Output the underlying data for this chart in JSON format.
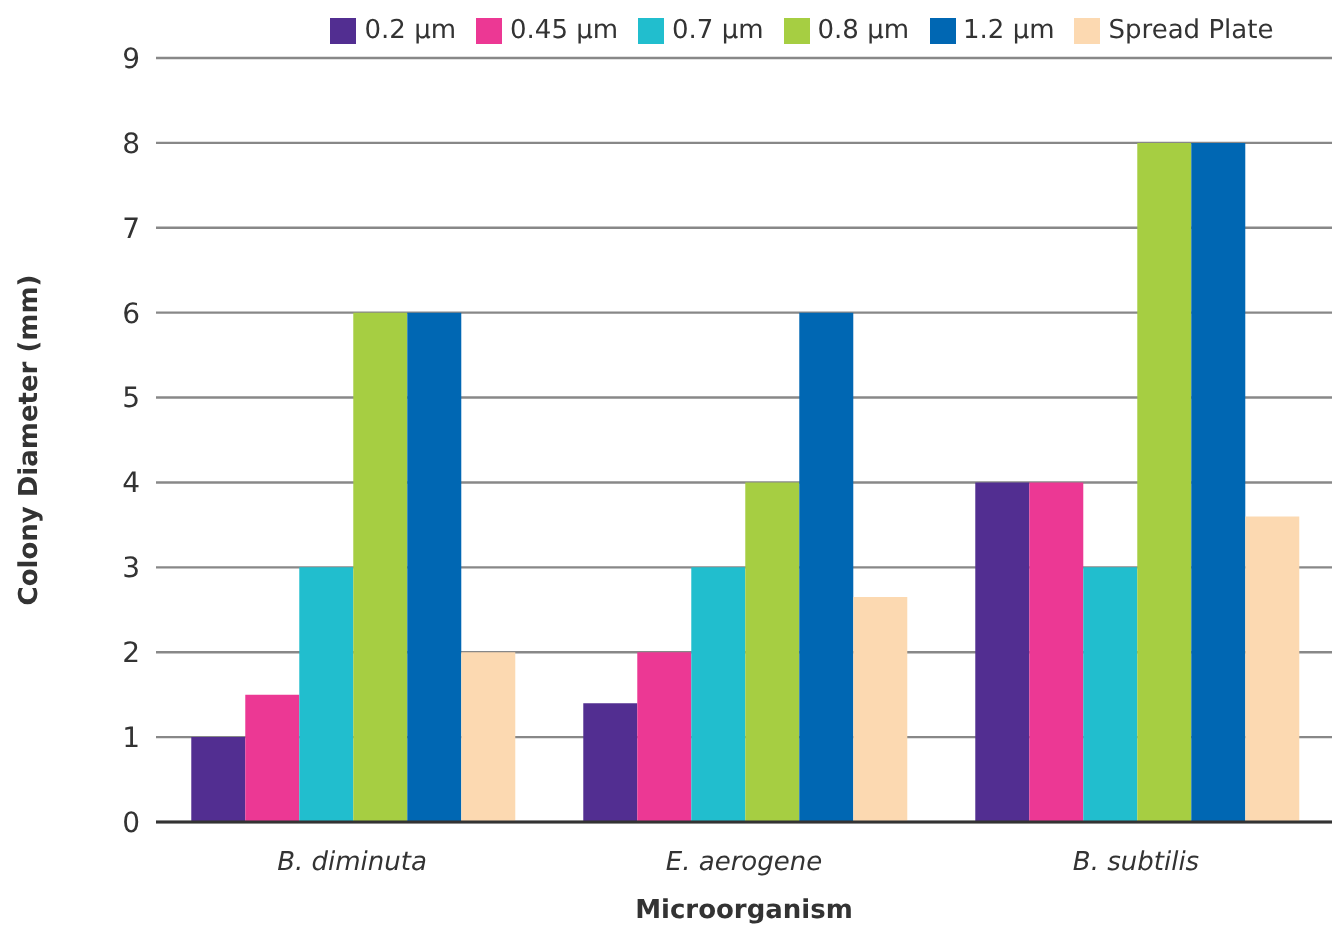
{
  "chart_data": {
    "type": "bar",
    "xlabel": "Microorganism",
    "ylabel": "Colony Diameter (mm)",
    "categories": [
      "B. diminuta",
      "E. aerogene",
      "B. subtilis"
    ],
    "series": [
      {
        "name": "0.2 µm",
        "color": "#522e91",
        "values": [
          1,
          1.4,
          4
        ]
      },
      {
        "name": "0.45 µm",
        "color": "#ec3894",
        "values": [
          1.5,
          2,
          4
        ]
      },
      {
        "name": "0.7 µm",
        "color": "#21bece",
        "values": [
          3,
          3,
          3
        ]
      },
      {
        "name": "0.8 µm",
        "color": "#a6ce42",
        "values": [
          6,
          4,
          8
        ]
      },
      {
        "name": "1.2 µm",
        "color": "#0067b3",
        "values": [
          6,
          6,
          8
        ]
      },
      {
        "name": "Spread Plate",
        "color": "#fcd9b1",
        "values": [
          2,
          2.65,
          3.6
        ]
      }
    ],
    "ylim": [
      0,
      9
    ],
    "yticks": [
      0,
      1,
      2,
      3,
      4,
      5,
      6,
      7,
      8,
      9
    ],
    "grid": "y",
    "legend": "top"
  }
}
